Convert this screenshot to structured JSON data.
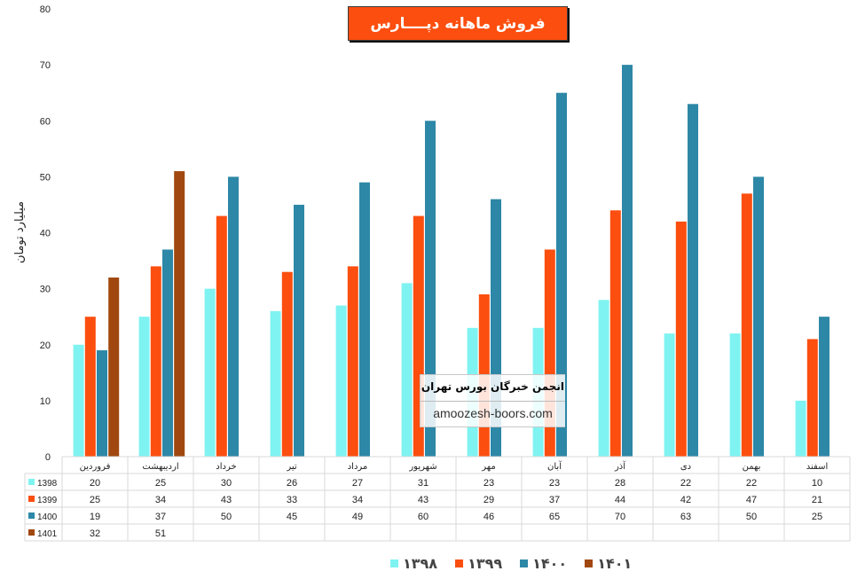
{
  "chart_data": {
    "type": "bar",
    "title": "فروش ماهانه دپــــارس",
    "ylabel": "میلیارد تومان",
    "xlabel": "",
    "ylim": [
      0,
      80
    ],
    "yticks": [
      0,
      10,
      20,
      30,
      40,
      50,
      60,
      70,
      80
    ],
    "grid": false,
    "legend_position": "bottom",
    "categories": [
      "فروردین",
      "اردیبهشت",
      "خرداد",
      "تیر",
      "مرداد",
      "شهریور",
      "مهر",
      "آبان",
      "آذر",
      "دی",
      "بهمن",
      "اسفند"
    ],
    "series": [
      {
        "name": "1398",
        "legend_label": "۱۳۹۸",
        "color": "#7ff3f1",
        "values": [
          20,
          25,
          30,
          26,
          27,
          31,
          23,
          23,
          28,
          22,
          22,
          10
        ]
      },
      {
        "name": "1399",
        "legend_label": "۱۳۹۹",
        "color": "#fb4e0f",
        "values": [
          25,
          34,
          43,
          33,
          34,
          43,
          29,
          37,
          44,
          42,
          47,
          21
        ]
      },
      {
        "name": "1400",
        "legend_label": "۱۴۰۰",
        "color": "#2d87a6",
        "values": [
          19,
          37,
          50,
          45,
          49,
          60,
          46,
          65,
          70,
          63,
          50,
          25
        ]
      },
      {
        "name": "1401",
        "legend_label": "۱۴۰۱",
        "color": "#a0480f",
        "values": [
          32,
          51,
          null,
          null,
          null,
          null,
          null,
          null,
          null,
          null,
          null,
          null
        ]
      }
    ]
  },
  "watermark": {
    "title": "انجمن خبرگان بورس تهران",
    "url": "amoozesh-boors.com"
  }
}
